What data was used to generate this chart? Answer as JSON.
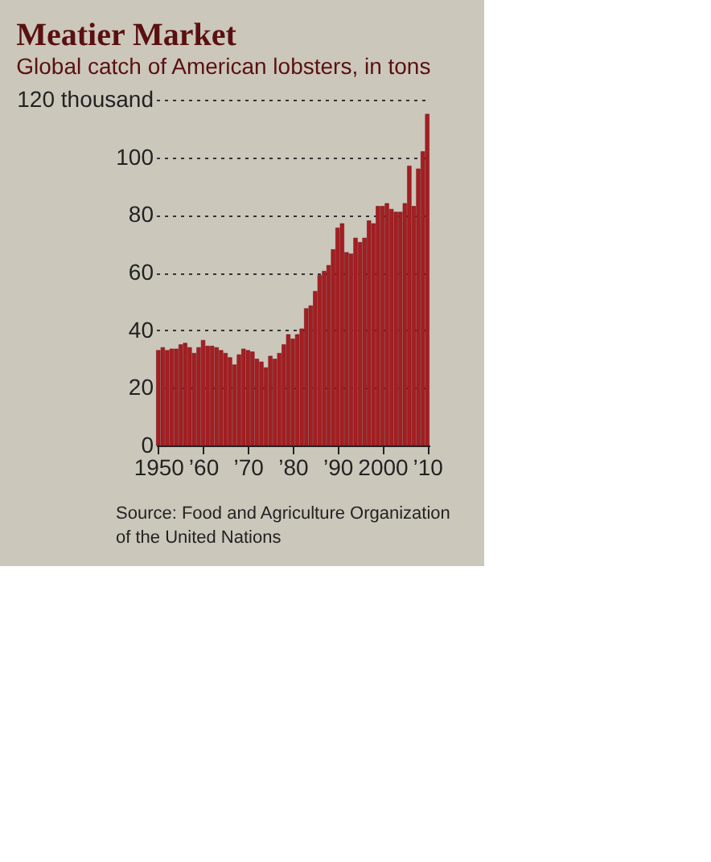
{
  "chart_data": {
    "type": "bar",
    "title": "Meatier Market",
    "subtitle": "Global catch of American lobsters, in tons",
    "x": [
      1950,
      1951,
      1952,
      1953,
      1954,
      1955,
      1956,
      1957,
      1958,
      1959,
      1960,
      1961,
      1962,
      1963,
      1964,
      1965,
      1966,
      1967,
      1968,
      1969,
      1970,
      1971,
      1972,
      1973,
      1974,
      1975,
      1976,
      1977,
      1978,
      1979,
      1980,
      1981,
      1982,
      1983,
      1984,
      1985,
      1986,
      1987,
      1988,
      1989,
      1990,
      1991,
      1992,
      1993,
      1994,
      1995,
      1996,
      1997,
      1998,
      1999,
      2000,
      2001,
      2002,
      2003,
      2004,
      2005,
      2006,
      2007,
      2008,
      2009,
      2010
    ],
    "values": [
      33,
      34,
      33,
      33.5,
      33.5,
      35,
      35.5,
      34,
      32,
      34,
      36.5,
      34.5,
      34.5,
      34,
      33,
      32,
      30.5,
      28,
      31.5,
      33.5,
      33,
      32.5,
      30,
      29,
      27,
      31,
      30,
      32,
      35,
      38.5,
      37,
      38.5,
      40.5,
      47.5,
      48.5,
      53.5,
      59,
      60.5,
      62.5,
      68,
      75.5,
      77,
      67,
      66.5,
      72,
      70.5,
      72,
      78,
      77,
      83,
      83,
      84,
      82,
      81,
      81,
      84,
      97,
      83,
      96,
      102,
      115
    ],
    "color": "#a51e22",
    "xlim": [
      1949.5,
      2010.5
    ],
    "xticks": [
      1950,
      {
        "value": 1960,
        "label": "’60"
      },
      {
        "value": 1970,
        "label": "’70"
      },
      {
        "value": 1980,
        "label": "’80"
      },
      {
        "value": 1990,
        "label": "’90"
      },
      2000,
      {
        "value": 2010,
        "label": "’10"
      }
    ],
    "ylim": [
      0,
      120
    ],
    "yticks": [
      0,
      20,
      40,
      60,
      80,
      100,
      {
        "value": 120,
        "label": "120 thousand"
      }
    ],
    "grid": "y",
    "annotations": [
      "Source: Food and Agriculture Organization",
      "of the United Nations"
    ]
  }
}
